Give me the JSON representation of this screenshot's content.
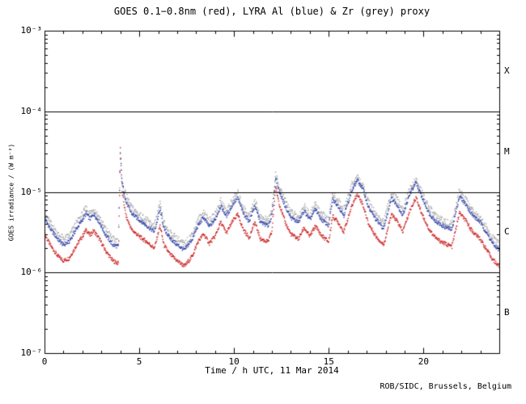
{
  "chart_data": {
    "type": "scatter",
    "title": "GOES 0.1−0.8nm (red), LYRA Al (blue) & Zr (grey) proxy",
    "xlabel": "Time / h UTC, 11 Mar 2014",
    "ylabel": "GOES irradiance / (W m⁻²)",
    "credit": "ROB/SIDC, Brussels, Belgium",
    "xlim": [
      0,
      24
    ],
    "ylim": [
      1e-07,
      0.001
    ],
    "yscale": "log",
    "grid": false,
    "legend": "none (series identified by color in title)",
    "xticks": {
      "positions": [
        0,
        5,
        10,
        15,
        20
      ],
      "labels": [
        "0",
        "5",
        "10",
        "15",
        "20"
      ]
    },
    "yticks": {
      "values": [
        0.001,
        0.0001,
        1e-05,
        1e-06,
        1e-07
      ],
      "labels": [
        "10⁻³",
        "10⁻⁴",
        "10⁻⁵",
        "10⁻⁶",
        "10⁻⁷"
      ]
    },
    "class_lines": [
      0.0001,
      1e-05,
      1e-06
    ],
    "flare_classes": [
      "X",
      "M",
      "C",
      "B"
    ],
    "series": [
      {
        "name": "GOES 0.1−0.8nm",
        "color": "#cc2222",
        "noise": 0.05,
        "t": [
          0.0,
          0.3,
          0.7,
          1.0,
          1.3,
          1.7,
          2.0,
          2.2,
          2.4,
          2.6,
          2.9,
          3.2,
          3.6,
          3.9,
          4.0,
          4.1,
          4.3,
          4.6,
          5.0,
          5.4,
          5.8,
          6.1,
          6.3,
          6.6,
          7.0,
          7.4,
          7.8,
          8.1,
          8.4,
          8.7,
          9.0,
          9.3,
          9.6,
          10.0,
          10.2,
          10.5,
          10.8,
          11.1,
          11.4,
          11.8,
          12.0,
          12.2,
          12.4,
          12.7,
          13.0,
          13.4,
          13.7,
          14.0,
          14.3,
          14.6,
          15.0,
          15.2,
          15.5,
          15.8,
          16.2,
          16.5,
          16.8,
          17.1,
          17.5,
          17.9,
          18.3,
          18.6,
          18.9,
          19.3,
          19.6,
          19.9,
          20.3,
          20.7,
          21.1,
          21.5,
          21.9,
          22.2,
          22.6,
          23.0,
          23.4,
          23.7,
          24.0
        ],
        "values": [
          3e-06,
          2.2e-06,
          1.6e-06,
          1.4e-06,
          1.5e-06,
          2.2e-06,
          2.8e-06,
          3.4e-06,
          2.9e-06,
          3.3e-06,
          2.6e-06,
          1.9e-06,
          1.4e-06,
          1.3e-06,
          3.5e-05,
          1e-05,
          5e-06,
          3.4e-06,
          2.8e-06,
          2.4e-06,
          2e-06,
          3.8e-06,
          2.2e-06,
          1.7e-06,
          1.4e-06,
          1.2e-06,
          1.6e-06,
          2.4e-06,
          3e-06,
          2.3e-06,
          2.8e-06,
          4.2e-06,
          3.1e-06,
          4.6e-06,
          5.2e-06,
          3.4e-06,
          2.7e-06,
          4.2e-06,
          2.6e-06,
          2.4e-06,
          3.2e-06,
          1.15e-05,
          7e-06,
          4.2e-06,
          3e-06,
          2.6e-06,
          3.6e-06,
          2.8e-06,
          3.8e-06,
          2.9e-06,
          2.4e-06,
          5e-06,
          4.2e-06,
          3.2e-06,
          6.5e-06,
          9.5e-06,
          7e-06,
          4e-06,
          2.8e-06,
          2.2e-06,
          5.2e-06,
          4.4e-06,
          3.2e-06,
          6e-06,
          8.5e-06,
          5.5e-06,
          3.4e-06,
          2.6e-06,
          2.3e-06,
          2.1e-06,
          5.5e-06,
          4.5e-06,
          3.2e-06,
          2.6e-06,
          1.8e-06,
          1.4e-06,
          1.2e-06
        ]
      },
      {
        "name": "LYRA Al proxy",
        "color": "#3344aa",
        "noise": 0.05,
        "t": [
          0.0,
          0.3,
          0.7,
          1.0,
          1.3,
          1.7,
          2.0,
          2.2,
          2.4,
          2.6,
          2.9,
          3.2,
          3.6,
          3.9,
          4.0,
          4.1,
          4.3,
          4.6,
          5.0,
          5.4,
          5.8,
          6.1,
          6.3,
          6.6,
          7.0,
          7.4,
          7.8,
          8.1,
          8.4,
          8.7,
          9.0,
          9.3,
          9.6,
          10.0,
          10.2,
          10.5,
          10.8,
          11.1,
          11.4,
          11.8,
          12.0,
          12.2,
          12.4,
          12.7,
          13.0,
          13.4,
          13.7,
          14.0,
          14.3,
          14.6,
          15.0,
          15.2,
          15.5,
          15.8,
          16.2,
          16.5,
          16.8,
          17.1,
          17.5,
          17.9,
          18.3,
          18.6,
          18.9,
          19.3,
          19.6,
          19.9,
          20.3,
          20.7,
          21.1,
          21.5,
          21.9,
          22.2,
          22.6,
          23.0,
          23.4,
          23.7,
          24.0
        ],
        "values": [
          4.8e-06,
          3.5e-06,
          2.6e-06,
          2.2e-06,
          2.4e-06,
          3.5e-06,
          4.5e-06,
          5.4e-06,
          4.6e-06,
          5.3e-06,
          4.2e-06,
          3e-06,
          2.2e-06,
          2.1e-06,
          3e-05,
          1.3e-05,
          7.5e-06,
          5.4e-06,
          4.5e-06,
          3.8e-06,
          3.2e-06,
          6.1e-06,
          3.5e-06,
          2.7e-06,
          2.2e-06,
          1.9e-06,
          2.6e-06,
          3.8e-06,
          4.8e-06,
          3.7e-06,
          4.5e-06,
          6.7e-06,
          5e-06,
          7.4e-06,
          8.3e-06,
          5.4e-06,
          4.3e-06,
          6.7e-06,
          4.2e-06,
          3.8e-06,
          5.1e-06,
          1.5e-05,
          1e-05,
          6.7e-06,
          4.8e-06,
          4.2e-06,
          5.8e-06,
          4.5e-06,
          6.1e-06,
          4.6e-06,
          3.8e-06,
          8e-06,
          6.7e-06,
          5.1e-06,
          1e-05,
          1.4e-05,
          1.1e-05,
          6.4e-06,
          4.5e-06,
          3.5e-06,
          8.3e-06,
          7e-06,
          5.1e-06,
          9.6e-06,
          1.3e-05,
          8.8e-06,
          5.4e-06,
          4.2e-06,
          3.7e-06,
          3.4e-06,
          8.8e-06,
          7.2e-06,
          5.1e-06,
          4.2e-06,
          2.9e-06,
          2.2e-06,
          1.9e-06
        ]
      },
      {
        "name": "LYRA Zr proxy",
        "color": "#aaaaaa",
        "noise": 0.09,
        "t": [
          0.0,
          0.3,
          0.7,
          1.0,
          1.3,
          1.7,
          2.0,
          2.2,
          2.4,
          2.6,
          2.9,
          3.2,
          3.6,
          3.9,
          4.0,
          4.1,
          4.3,
          4.6,
          5.0,
          5.4,
          5.8,
          6.1,
          6.3,
          6.6,
          7.0,
          7.4,
          7.8,
          8.1,
          8.4,
          8.7,
          9.0,
          9.3,
          9.6,
          10.0,
          10.2,
          10.5,
          10.8,
          11.1,
          11.4,
          11.8,
          12.0,
          12.2,
          12.4,
          12.7,
          13.0,
          13.4,
          13.7,
          14.0,
          14.3,
          14.6,
          15.0,
          15.2,
          15.5,
          15.8,
          16.2,
          16.5,
          16.8,
          17.1,
          17.5,
          17.9,
          18.3,
          18.6,
          18.9,
          19.3,
          19.6,
          19.9,
          20.3,
          20.7,
          21.1,
          21.5,
          21.9,
          22.2,
          22.6,
          23.0,
          23.4,
          23.7,
          24.0
        ],
        "values": [
          5.6e-06,
          4.1e-06,
          3e-06,
          2.6e-06,
          2.8e-06,
          4.1e-06,
          5.2e-06,
          6.3e-06,
          5.4e-06,
          6.1e-06,
          4.8e-06,
          3.5e-06,
          2.6e-06,
          2.4e-06,
          2.8e-05,
          1.2e-05,
          9e-06,
          6.3e-06,
          5.2e-06,
          4.4e-06,
          3.7e-06,
          7e-06,
          4.1e-06,
          3.1e-06,
          2.6e-06,
          2.2e-06,
          3e-06,
          4.4e-06,
          5.6e-06,
          4.3e-06,
          5.2e-06,
          7.8e-06,
          5.7e-06,
          8.5e-06,
          9.6e-06,
          6.3e-06,
          5e-06,
          7.8e-06,
          4.8e-06,
          4.4e-06,
          5.9e-06,
          1.6e-05,
          1.1e-05,
          7.8e-06,
          5.6e-06,
          4.8e-06,
          6.7e-06,
          5.2e-06,
          7e-06,
          5.4e-06,
          4.4e-06,
          9.3e-06,
          7.8e-06,
          5.9e-06,
          1.2e-05,
          1.5e-05,
          1.2e-05,
          7.4e-06,
          5.2e-06,
          4.1e-06,
          9.6e-06,
          8.1e-06,
          5.9e-06,
          1.1e-05,
          1.4e-05,
          1e-05,
          6.3e-06,
          4.8e-06,
          4.3e-06,
          3.9e-06,
          1e-05,
          8.3e-06,
          5.9e-06,
          4.8e-06,
          3.3e-06,
          2.6e-06,
          2.2e-06
        ]
      }
    ]
  }
}
